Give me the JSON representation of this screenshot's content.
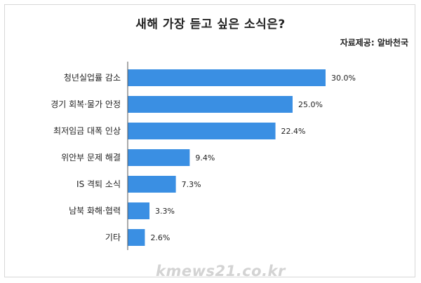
{
  "title": "새해 가장 듣고 싶은 소식은?",
  "source": "자료제공: 알바천국",
  "watermark": "kmews21.co.kr",
  "colors": {
    "bar": "#3a8fe3",
    "axis": "#555555",
    "text": "#222222"
  },
  "chart_data": {
    "type": "bar",
    "orientation": "horizontal",
    "title": "새해 가장 듣고 싶은 소식은?",
    "xlabel": "",
    "ylabel": "",
    "xlim": [
      0,
      30
    ],
    "grid": false,
    "categories": [
      "청년실업률 감소",
      "경기 회복·물가 안정",
      "최저임금 대폭 인상",
      "위안부 문제 해결",
      "IS 격퇴 소식",
      "남북 화해·협력",
      "기타"
    ],
    "values": [
      30.0,
      25.0,
      22.4,
      9.4,
      7.3,
      3.3,
      2.6
    ],
    "value_labels": [
      "30.0%",
      "25.0%",
      "22.4%",
      "9.4%",
      "7.3%",
      "3.3%",
      "2.6%"
    ]
  }
}
